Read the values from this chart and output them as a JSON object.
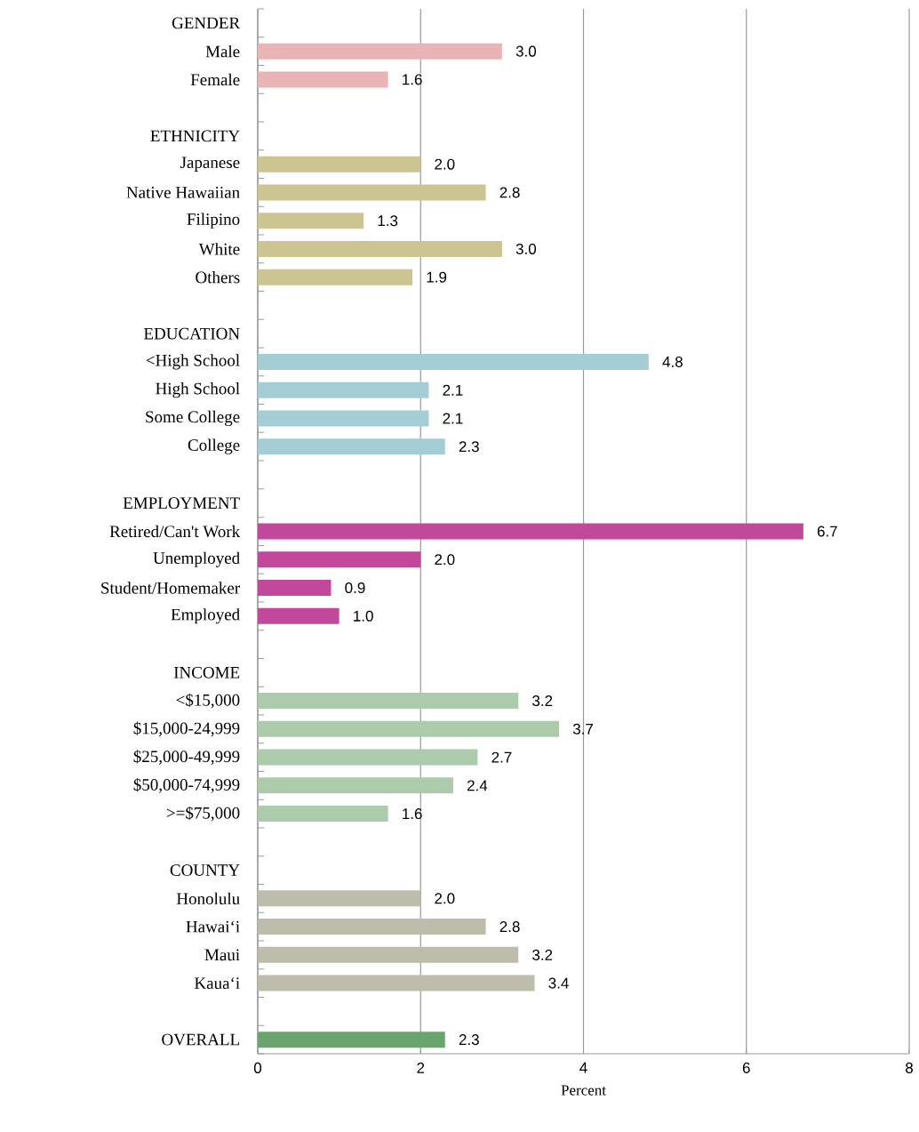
{
  "chart_data": {
    "type": "bar",
    "orientation": "horizontal",
    "xlabel": "Percent",
    "categories": [
      "GENDER",
      "Male",
      "Female",
      null,
      "ETHNICITY",
      "Japanese",
      "Native Hawaiian",
      "Filipino",
      "White",
      "Others",
      null,
      "EDUCATION",
      "<High School",
      "High School",
      "Some College",
      "College",
      null,
      "EMPLOYMENT",
      "Retired/Can't Work",
      "Unemployed",
      "Student/Homemaker",
      "Employed",
      null,
      "INCOME",
      "<$15,000",
      "$15,000-24,999",
      "$25,000-49,999",
      "$50,000-74,999",
      ">=$75,000",
      null,
      "COUNTY",
      "Honolulu",
      "Hawai‘i",
      "Maui",
      "Kaua‘i",
      null,
      "OVERALL"
    ],
    "values": [
      null,
      3.0,
      1.6,
      null,
      null,
      2.0,
      2.8,
      1.3,
      3.0,
      1.9,
      null,
      null,
      4.8,
      2.1,
      2.1,
      2.3,
      null,
      null,
      6.7,
      2.0,
      0.9,
      1.0,
      null,
      null,
      3.2,
      3.7,
      2.7,
      2.4,
      1.6,
      null,
      null,
      2.0,
      2.8,
      3.2,
      3.4,
      null,
      2.3
    ],
    "value_labels": [
      null,
      "3.0",
      "1.6",
      null,
      null,
      "2.0",
      "2.8",
      "1.3",
      "3.0",
      "1.9",
      null,
      null,
      "4.8",
      "2.1",
      "2.1",
      "2.3",
      null,
      null,
      "6.7",
      "2.0",
      "0.9",
      "1.0",
      null,
      null,
      "3.2",
      "3.7",
      "2.7",
      "2.4",
      "1.6",
      null,
      null,
      "2.0",
      "2.8",
      "3.2",
      "3.4",
      null,
      "2.3"
    ],
    "colors": [
      null,
      "#e8b4b5",
      "#e8b4b5",
      null,
      null,
      "#ccc591",
      "#ccc591",
      "#ccc591",
      "#ccc591",
      "#ccc591",
      null,
      null,
      "#a6cdd6",
      "#a6cdd6",
      "#a6cdd6",
      "#a6cdd6",
      null,
      null,
      "#c1489b",
      "#c1489b",
      "#c1489b",
      "#c1489b",
      null,
      null,
      "#abcbab",
      "#abcbab",
      "#abcbab",
      "#abcbab",
      "#abcbab",
      null,
      null,
      "#bebcab",
      "#bebcab",
      "#bebcab",
      "#bebcab",
      null,
      "#6aa56f"
    ],
    "xlim": [
      0,
      8
    ],
    "xticks": [
      0,
      2,
      4,
      6,
      8
    ],
    "grid": "x"
  }
}
